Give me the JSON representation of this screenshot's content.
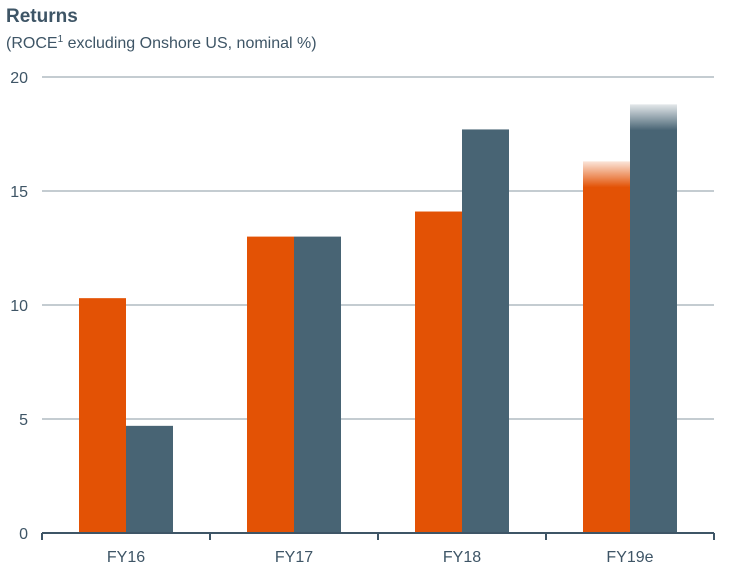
{
  "chart_data": {
    "type": "bar",
    "title": "Returns",
    "subtitle_main": "(ROCE",
    "subtitle_sup": "1",
    "subtitle_rest": " excluding Onshore US, nominal %)",
    "categories": [
      "FY16",
      "FY17",
      "FY18",
      "FY19e"
    ],
    "series": [
      {
        "values": [
          10.3,
          13.0,
          14.1,
          16.3
        ],
        "color": "#e35205"
      },
      {
        "values": [
          4.7,
          13.0,
          17.7,
          18.8
        ],
        "color": "#486474"
      }
    ],
    "estimated_category": "FY19e",
    "ylim": [
      0,
      20
    ],
    "yticks": [
      0,
      5,
      10,
      15,
      20
    ],
    "grid": true,
    "legend": "none",
    "colors": {
      "text": "#3e5566",
      "grid": "#8a99a3",
      "axis": "#3e5566"
    }
  }
}
